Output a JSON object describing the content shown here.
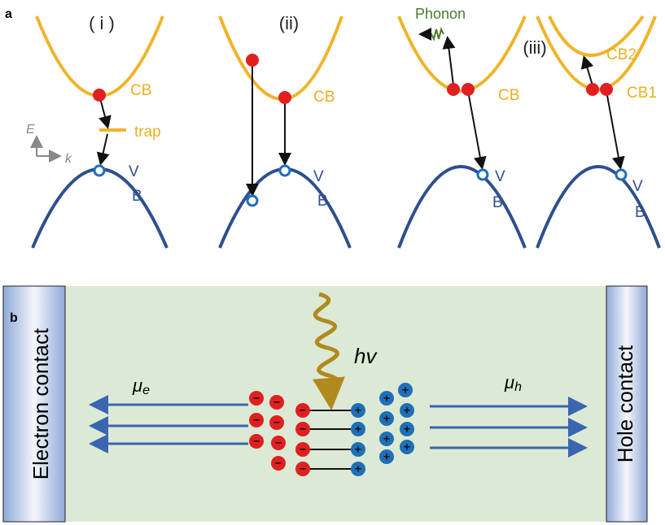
{
  "panel_a": {
    "label": "a",
    "panels": [
      {
        "title": "( i )",
        "cb": "CB",
        "trap": "trap",
        "vb_v": "V",
        "vb_b": "B",
        "axis_e": "E",
        "axis_k": "k"
      },
      {
        "title": "(ii)",
        "cb": "CB",
        "vb_v": "V",
        "vb_b": "B"
      },
      {
        "title": "(iii)",
        "phonon": "Phonon",
        "cb": "CB",
        "vb_v": "V",
        "vb_b": "B"
      },
      {
        "cb2": "CB2",
        "cb1": "CB1",
        "vb_v": "V",
        "vb_b": "B"
      }
    ]
  },
  "panel_b": {
    "label": "b",
    "electron_contact": "Electron contact",
    "hole_contact": "Hole contact",
    "photon": "hv",
    "mu_e": {
      "symbol": "μ",
      "sub": "e"
    },
    "mu_h": {
      "symbol": "μ",
      "sub": "h"
    },
    "electron_sign": "−",
    "hole_sign": "+"
  }
}
